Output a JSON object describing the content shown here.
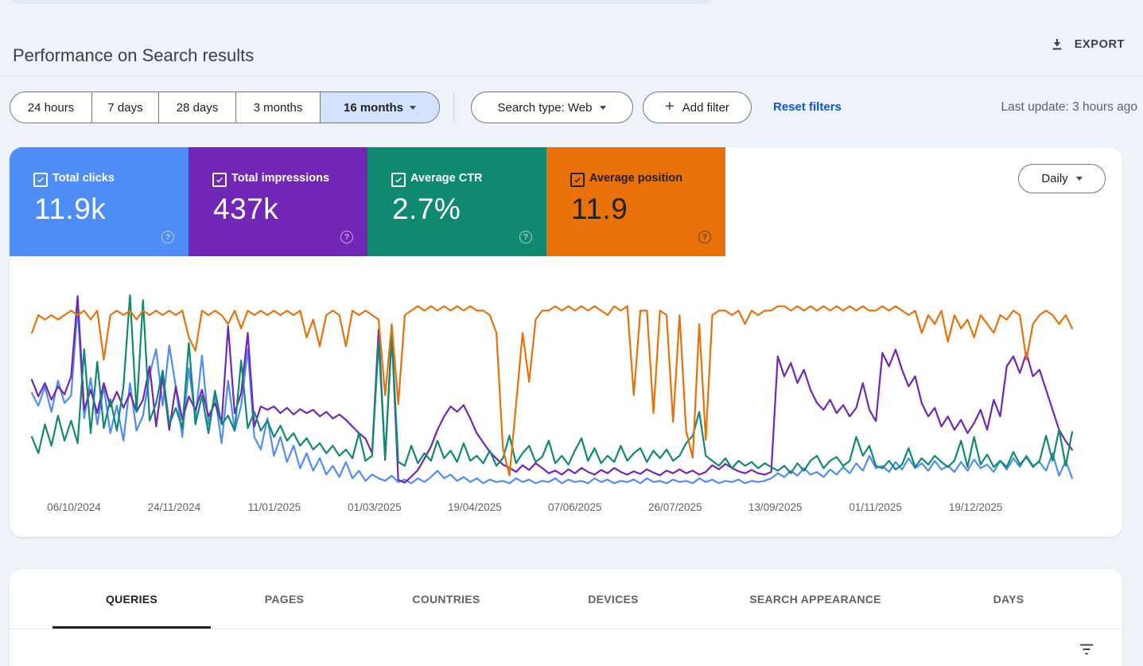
{
  "page": {
    "title": "Performance on Search results",
    "export_label": "EXPORT",
    "last_update": "Last update: 3 hours ago"
  },
  "filters": {
    "date_ranges": [
      "24 hours",
      "7 days",
      "28 days",
      "3 months",
      "16 months"
    ],
    "selected_range": "16 months",
    "selected_range_bg": "#d3e3fd",
    "search_type": "Search type: Web",
    "add_filter_label": "Add filter",
    "reset_label": "Reset filters",
    "link_color": "#0b57d0"
  },
  "metrics": [
    {
      "label": "Total clicks",
      "value": "11.9k",
      "checked": true,
      "color": "#4e8df5",
      "text_color": "#ffffff"
    },
    {
      "label": "Total impressions",
      "value": "437k",
      "checked": true,
      "color": "#7126b5",
      "text_color": "#ffffff"
    },
    {
      "label": "Average CTR",
      "value": "2.7%",
      "checked": true,
      "color": "#0f8a70",
      "text_color": "#ffffff"
    },
    {
      "label": "Average position",
      "value": "11.9",
      "checked": true,
      "color": "#e8710a",
      "text_color": "#212121"
    }
  ],
  "granularity": {
    "label": "Daily"
  },
  "icons": {
    "export": "download-tray",
    "metric_checkbox": "checked-checkbox",
    "metric_help": "question-circle",
    "dropdown": "chevron-down",
    "add_filter": "plus",
    "table_filter": "filter-list"
  },
  "chart_data": {
    "type": "line",
    "x_tick_labels": [
      "06/10/2024",
      "24/11/2024",
      "11/01/2025",
      "01/03/2025",
      "19/04/2025",
      "07/06/2025",
      "26/07/2025",
      "13/09/2025",
      "01/11/2025",
      "19/12/2025"
    ],
    "grid": false,
    "legend": "metric tiles act as legend",
    "series": [
      {
        "name": "Clicks",
        "color": "#4e8df5",
        "axis_min": 0,
        "axis_max": 160,
        "inverted": false,
        "values": [
          80,
          70,
          85,
          65,
          90,
          72,
          78,
          148,
          60,
          92,
          55,
          85,
          48,
          70,
          42,
          88,
          50,
          62,
          95,
          115,
          70,
          118,
          85,
          45,
          100,
          60,
          110,
          55,
          78,
          40,
          90,
          50,
          70,
          115,
          45,
          35,
          60,
          30,
          45,
          25,
          38,
          20,
          32,
          18,
          28,
          15,
          22,
          13,
          25,
          12,
          18,
          10,
          15,
          12,
          10,
          14,
          9,
          11,
          8,
          12,
          9,
          13,
          18,
          12,
          15,
          10,
          13,
          9,
          12,
          8,
          11,
          9,
          10,
          8,
          12,
          9,
          11,
          8,
          10,
          9,
          12,
          8,
          11,
          9,
          10,
          8,
          12,
          9,
          11,
          8,
          10,
          9,
          11,
          8,
          12,
          9,
          10,
          8,
          11,
          9,
          10,
          8,
          12,
          9,
          11,
          8,
          10,
          9,
          11,
          8,
          10,
          9,
          10,
          12,
          16,
          13,
          18,
          14,
          20,
          15,
          17,
          13,
          19,
          15,
          21,
          16,
          24,
          18,
          30,
          20,
          22,
          17,
          25,
          19,
          28,
          20,
          24,
          18,
          26,
          19,
          22,
          17,
          25,
          18,
          27,
          20,
          23,
          17,
          26,
          19,
          28,
          21,
          30,
          22,
          25,
          18,
          32,
          14,
          26,
          12
        ]
      },
      {
        "name": "Impressions",
        "color": "#7126b5",
        "axis_min": 0,
        "axis_max": 3000,
        "inverted": false,
        "values": [
          1700,
          1450,
          1650,
          1400,
          1600,
          1480,
          1750,
          2950,
          1250,
          1550,
          1200,
          1650,
          1300,
          1520,
          1280,
          1500,
          1220,
          1400,
          1900,
          1000,
          1750,
          950,
          1600,
          1100,
          1450,
          1250,
          1550,
          1150,
          1350,
          1050,
          2500,
          1200,
          1500,
          2400,
          1000,
          1300,
          1250,
          1300,
          1200,
          1280,
          1180,
          1260,
          1200,
          1250,
          1150,
          1220,
          1120,
          1180,
          1100,
          1000,
          900,
          820,
          600,
          2450,
          500,
          2400,
          200,
          160,
          250,
          350,
          520,
          700,
          950,
          1150,
          1300,
          1220,
          1320,
          1120,
          900,
          760,
          620,
          520,
          430,
          380,
          320,
          420,
          350,
          450,
          380,
          300,
          340,
          280,
          360,
          300,
          380,
          320,
          280,
          350,
          300,
          380,
          320,
          280,
          330,
          290,
          360,
          310,
          270,
          340,
          300,
          360,
          300,
          340,
          280,
          320,
          420,
          360,
          440,
          380,
          330,
          300,
          350,
          300,
          280,
          320,
          2050,
          1750,
          1950,
          1650,
          1850,
          1550,
          1350,
          1250,
          1400,
          1200,
          1320,
          1150,
          1280,
          1650,
          1250,
          1080,
          2100,
          1900,
          2150,
          1850,
          1600,
          1750,
          1350,
          1150,
          1280,
          1000,
          1150,
          950,
          1100,
          900,
          1050,
          1250,
          950,
          1400,
          1150,
          1900,
          2050,
          1800,
          2100,
          1750,
          1850,
          1550,
          1250,
          950,
          780,
          650
        ]
      },
      {
        "name": "CTR (%)",
        "color": "#0f8a70",
        "axis_min": 0,
        "axis_max": 16,
        "inverted": false,
        "values": [
          4.5,
          3.2,
          5.5,
          3.8,
          6.2,
          4.2,
          5.8,
          4,
          11.5,
          4.8,
          10.5,
          5.2,
          7.5,
          5,
          8.5,
          15.8,
          6.5,
          15.4,
          5.8,
          7.2,
          9.8,
          5.5,
          6.8,
          5.2,
          12,
          5.5,
          7.8,
          4.8,
          8.2,
          5.5,
          6.2,
          5,
          10.6,
          5.2,
          6.5,
          5,
          5.8,
          4.5,
          5.4,
          4.2,
          4.8,
          3.8,
          4.4,
          3.5,
          4,
          3.2,
          3.8,
          3,
          3.5,
          2.8,
          4.8,
          2.6,
          3,
          12.2,
          2.8,
          12.6,
          2.5,
          2.2,
          3.8,
          2.4,
          3.2,
          2.6,
          4.2,
          2.8,
          3.4,
          2.5,
          4,
          2.6,
          3,
          2.4,
          3.4,
          2.2,
          2.8,
          4.6,
          2.4,
          3.2,
          3.8,
          2.5,
          2.9,
          4.2,
          2.4,
          3,
          2.3,
          3.4,
          4.4,
          2.6,
          3.6,
          2.4,
          3,
          2.5,
          3.8,
          2.6,
          3.2,
          3.6,
          2.5,
          3.4,
          2.8,
          3.5,
          2.6,
          3,
          4,
          4.6,
          6.5,
          3,
          2.6,
          2.2,
          2.8,
          2,
          2.6,
          2.2,
          2.5,
          2,
          2.4,
          2.1,
          1.8,
          2.2,
          1.6,
          2.4,
          1.8,
          2.6,
          3,
          2,
          2.6,
          2.9,
          2.2,
          2.6,
          4.5,
          3,
          3.8,
          2.2,
          2,
          2.6,
          1.9,
          2.3,
          3.6,
          2.1,
          2.8,
          2.3,
          3,
          2.5,
          2.1,
          2.6,
          4.2,
          2.1,
          4.5,
          2.3,
          3.1,
          2.1,
          2.6,
          2.1,
          3.3,
          2.3,
          2.9,
          2.1,
          2.6,
          4.6,
          2.6,
          5.1,
          2.2,
          4.9
        ]
      },
      {
        "name": "Position",
        "color": "#e8710a",
        "axis_min": 5,
        "axis_max": 50,
        "inverted": true,
        "values": [
          14,
          10,
          11,
          10,
          11,
          10,
          9,
          10,
          9,
          11,
          9,
          20,
          10,
          9,
          10,
          9,
          11,
          9,
          10,
          9,
          10,
          9,
          10,
          9,
          15,
          18,
          9,
          10,
          9,
          10,
          12,
          9,
          13,
          9,
          10,
          9,
          10,
          9,
          10,
          9,
          10,
          9,
          15,
          11,
          17,
          10,
          9,
          10,
          17,
          9,
          10,
          9,
          10,
          11,
          28,
          12,
          30,
          10,
          9,
          8,
          9,
          8,
          9,
          8,
          9,
          8,
          9,
          8,
          9,
          9,
          10,
          14,
          40,
          46,
          30,
          14,
          25,
          11,
          9,
          9,
          8,
          9,
          8,
          9,
          8,
          9,
          8,
          9,
          10,
          8,
          9,
          8,
          28,
          9,
          9,
          32,
          9,
          10,
          34,
          10,
          36,
          42,
          12,
          38,
          10,
          9,
          9,
          10,
          9,
          12,
          9,
          10,
          9,
          9,
          8,
          8,
          9,
          8,
          9,
          8,
          9,
          8,
          9,
          8,
          9,
          8,
          9,
          8,
          9,
          9,
          8,
          9,
          8,
          9,
          10,
          9,
          14,
          10,
          12,
          9,
          16,
          10,
          13,
          11,
          15,
          10,
          12,
          14,
          10,
          11,
          9,
          10,
          20,
          12,
          10,
          9,
          10,
          12,
          10,
          13
        ]
      }
    ]
  },
  "tabs": [
    {
      "label": "QUERIES",
      "active": true
    },
    {
      "label": "PAGES",
      "active": false
    },
    {
      "label": "COUNTRIES",
      "active": false
    },
    {
      "label": "DEVICES",
      "active": false
    },
    {
      "label": "SEARCH APPEARANCE",
      "active": false
    },
    {
      "label": "DAYS",
      "active": false
    }
  ]
}
